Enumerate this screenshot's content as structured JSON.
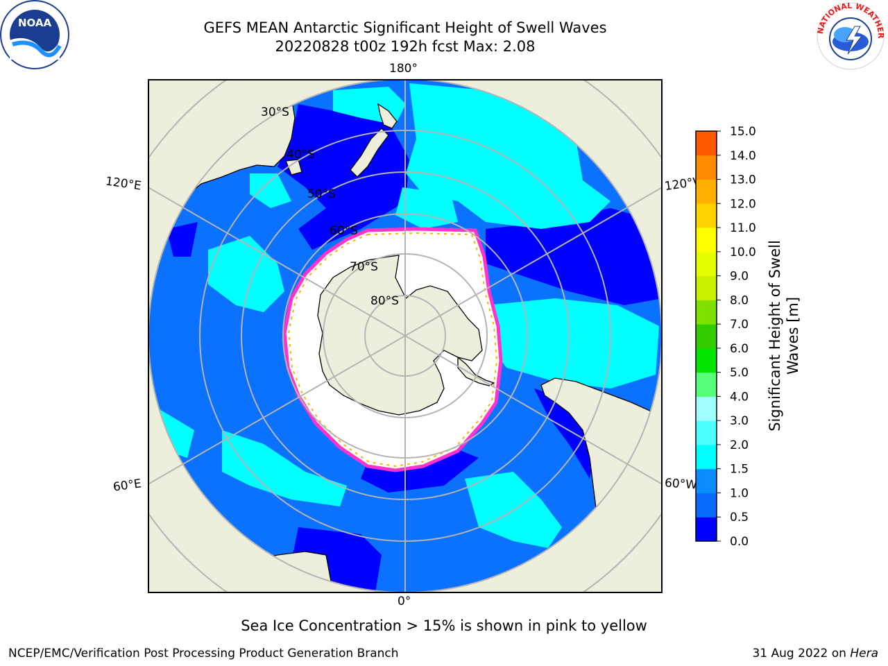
{
  "title": {
    "line1": "GEFS MEAN Antarctic Significant Height of Swell Waves",
    "line2": "20220828 t00z 192h fcst   Max: 2.08"
  },
  "map": {
    "projection": "south-polar-stereographic",
    "longitude_labels": [
      "180°",
      "120°E",
      "120°W",
      "60°E",
      "60°W",
      "0°"
    ],
    "latitude_labels": [
      "30°S",
      "40°S",
      "50°S",
      "60°S",
      "70°S",
      "80°S"
    ],
    "colors": {
      "land": "#eeeedc",
      "ice_region": "#ffffff",
      "grid": "#b4b4b4",
      "ice_edge_pink": "#ff33cc",
      "ice_edge_yellow": "#ffb300"
    }
  },
  "colorbar": {
    "label_line1": "Significant Height of Swell",
    "label_line2": "Waves [m]",
    "ticks": [
      "0.0",
      "0.5",
      "1.0",
      "1.5",
      "2.0",
      "3.0",
      "4.0",
      "5.0",
      "6.0",
      "7.0",
      "8.0",
      "9.0",
      "10.0",
      "11.0",
      "12.0",
      "13.0",
      "14.0",
      "15.0"
    ],
    "colors": [
      "#0000ff",
      "#0a6cff",
      "#0a8cff",
      "#00ffff",
      "#4cffff",
      "#a0ffff",
      "#55ff77",
      "#00e400",
      "#33cc00",
      "#7fe000",
      "#c8f000",
      "#e6ff00",
      "#ffff00",
      "#ffd200",
      "#ffb000",
      "#ff8c00",
      "#ff5a00",
      "#ff2800",
      "#ff0000"
    ]
  },
  "caption": "Sea Ice Concentration > 15% is shown in pink to yellow",
  "footer": {
    "left": "NCEP/EMC/Verification Post Processing Product Generation Branch",
    "right_date": "31 Aug 2022 on",
    "right_host": "Hera"
  },
  "logos": {
    "noaa_text": "NOAA",
    "nws_text": "NATIONAL WEATHER SERVICE"
  }
}
